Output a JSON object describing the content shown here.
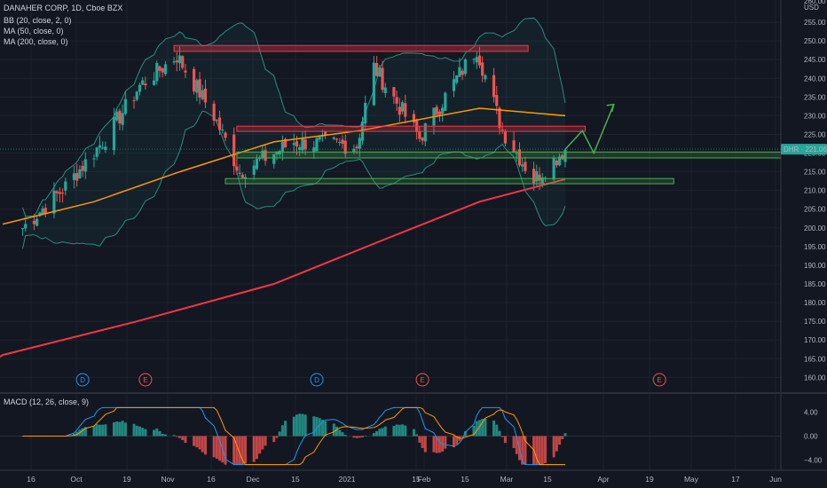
{
  "header": {
    "title": "DANAHER CORP, 1D, Cboe BZX",
    "indicators": [
      "BB (20, close, 2, 0)",
      "MA (50, close, 0)",
      "MA (200, close, 0)"
    ]
  },
  "macd_panel": {
    "label": "MACD (12, 26, close, 9)"
  },
  "price_axis": {
    "currency": "USD",
    "top_tick": "260.00"
  },
  "last_price": {
    "symbol": "DHR",
    "value": "221.06"
  },
  "colors": {
    "up": "#26a69a",
    "down": "#ef5350",
    "ma50": "#ff9800",
    "ma200": "#f23645",
    "bb": "#2a8c82",
    "macd": "#2196f3",
    "signal": "#ff9800"
  },
  "chart_data": [
    {
      "type": "candlestick",
      "title": "DANAHER CORP, 1D, Cboe BZX",
      "ylim": [
        157,
        260
      ],
      "yticks": [
        160,
        165,
        170,
        175,
        180,
        185,
        190,
        195,
        200,
        205,
        210,
        215,
        220,
        225,
        230,
        235,
        240,
        245,
        250,
        255
      ],
      "ytick_labels": [
        "160.00",
        "165.00",
        "170.00",
        "175.00",
        "180.00",
        "185.00",
        "190.00",
        "195.00",
        "200.00",
        "205.00",
        "210.00",
        "215.00",
        "220.00",
        "225.00",
        "230.00",
        "235.00",
        "240.00",
        "245.00",
        "250.00",
        "255.00"
      ],
      "x_labels": [
        "16",
        "Oct",
        "19",
        "Nov",
        "16",
        "Dec",
        "15",
        "2021",
        "15",
        "Feb",
        "15",
        "Mar",
        "15",
        "Apr",
        "19",
        "May",
        "17",
        "Jun"
      ],
      "key_points": [
        {
          "x": "2020-09-10",
          "close": 200
        },
        {
          "x": "2020-09-25",
          "close": 211
        },
        {
          "x": "2020-10-09",
          "close": 224
        },
        {
          "x": "2020-10-21",
          "close": 238
        },
        {
          "x": "2020-11-03",
          "close": 246
        },
        {
          "x": "2020-11-16",
          "close": 230
        },
        {
          "x": "2020-11-25",
          "close": 215
        },
        {
          "x": "2020-12-14",
          "close": 223
        },
        {
          "x": "2021-01-05",
          "close": 222
        },
        {
          "x": "2021-01-11",
          "close": 243
        },
        {
          "x": "2021-01-27",
          "close": 224
        },
        {
          "x": "2021-02-09",
          "close": 240
        },
        {
          "x": "2021-02-16",
          "close": 248
        },
        {
          "x": "2021-02-25",
          "close": 226
        },
        {
          "x": "2021-03-08",
          "close": 213
        },
        {
          "x": "2021-03-19",
          "close": 221
        }
      ],
      "series": [
        {
          "name": "MA (200, close, 0)",
          "points": [
            [
              "2020-09-03",
              166
            ],
            [
              "2020-10-20",
              175
            ],
            [
              "2020-12-07",
              185
            ],
            [
              "2021-01-15",
              197
            ],
            [
              "2021-02-17",
              207
            ],
            [
              "2021-03-19",
              213
            ]
          ]
        },
        {
          "name": "MA (50, close, 0)",
          "points": [
            [
              "2020-09-03",
              201
            ],
            [
              "2020-10-05",
              207
            ],
            [
              "2020-11-04",
              215
            ],
            [
              "2020-12-07",
              223
            ],
            [
              "2021-01-06",
              226
            ],
            [
              "2021-02-17",
              232
            ],
            [
              "2021-03-19",
              230
            ]
          ]
        }
      ],
      "resistance_zones": [
        248,
        226.5
      ],
      "support_lines": [
        219.5,
        212.5
      ],
      "projection": [
        [
          "2021-03-19",
          221
        ],
        [
          "2021-03-25",
          226
        ],
        [
          "2021-03-29",
          220
        ],
        [
          "2021-04-05",
          233
        ]
      ],
      "events": [
        {
          "label": "D",
          "x": "2020-10-01"
        },
        {
          "label": "E",
          "x": "2020-10-23"
        },
        {
          "label": "D",
          "x": "2020-12-22"
        },
        {
          "label": "E",
          "x": "2021-01-28"
        },
        {
          "label": "E",
          "x": "2021-04-21"
        }
      ]
    },
    {
      "type": "bar",
      "title": "MACD (12, 26, close, 9)",
      "ylim": [
        -5,
        5
      ],
      "yticks": [
        4,
        0,
        -4
      ],
      "ytick_labels": [
        "4.00",
        "0.00",
        "−4.00"
      ],
      "series": [
        {
          "name": "MACD"
        },
        {
          "name": "Signal"
        },
        {
          "name": "Histogram"
        }
      ]
    }
  ]
}
